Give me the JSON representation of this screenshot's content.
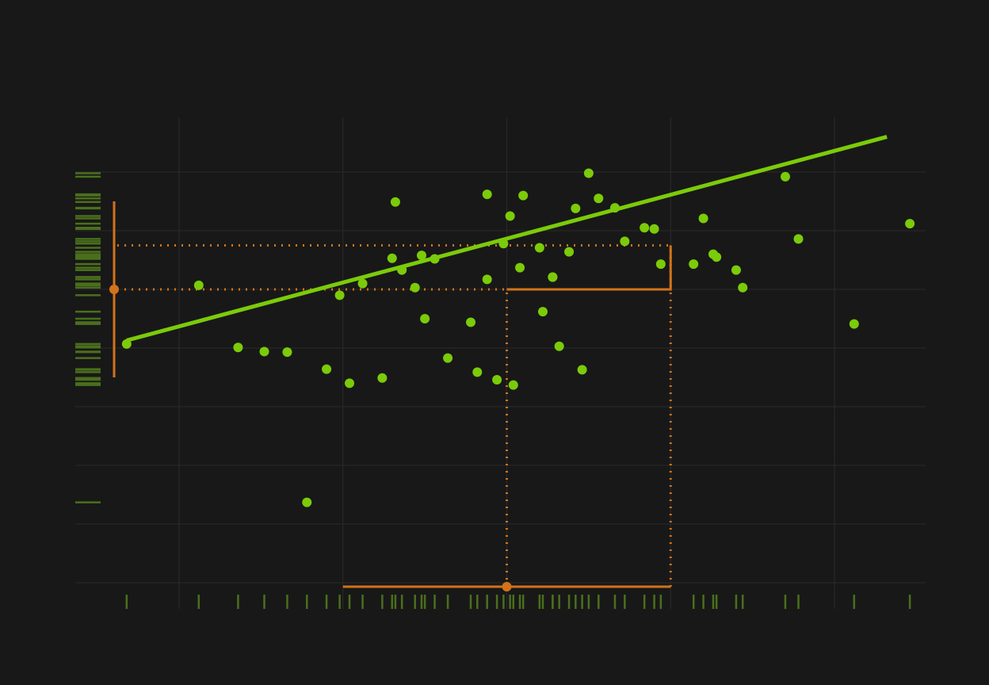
{
  "chart_data": {
    "type": "scatter",
    "title": "",
    "xlabel": "",
    "ylabel": "",
    "xlim": [
      -13,
      13
    ],
    "ylim": [
      -55,
      25
    ],
    "grid": true,
    "x_gridlines": [
      -10,
      -5,
      0,
      5,
      10
    ],
    "y_gridlines": [
      -50,
      -40,
      -30,
      -20,
      -10,
      0,
      10,
      20
    ],
    "points": [
      {
        "x": -11.6,
        "y": -9.3
      },
      {
        "x": -9.4,
        "y": 0.7
      },
      {
        "x": -8.2,
        "y": -9.9
      },
      {
        "x": -7.4,
        "y": -10.6
      },
      {
        "x": -6.7,
        "y": -10.7
      },
      {
        "x": -6.1,
        "y": -36.3
      },
      {
        "x": -5.5,
        "y": -13.6
      },
      {
        "x": -5.1,
        "y": -1.0
      },
      {
        "x": -4.8,
        "y": -16.0
      },
      {
        "x": -4.4,
        "y": 1.0
      },
      {
        "x": -3.8,
        "y": -15.1
      },
      {
        "x": -3.5,
        "y": 5.3
      },
      {
        "x": -3.4,
        "y": 14.9
      },
      {
        "x": -3.2,
        "y": 3.3
      },
      {
        "x": -2.8,
        "y": 0.3
      },
      {
        "x": -2.6,
        "y": 5.8
      },
      {
        "x": -2.5,
        "y": -5.0
      },
      {
        "x": -2.2,
        "y": 5.2
      },
      {
        "x": -1.1,
        "y": -5.6
      },
      {
        "x": -0.9,
        "y": -14.1
      },
      {
        "x": -0.6,
        "y": 1.7
      },
      {
        "x": -0.6,
        "y": 16.2
      },
      {
        "x": -0.3,
        "y": -15.4
      },
      {
        "x": -1.8,
        "y": -11.7
      },
      {
        "x": -0.1,
        "y": 7.8
      },
      {
        "x": 0.1,
        "y": 12.5
      },
      {
        "x": 0.4,
        "y": 3.7
      },
      {
        "x": 1.0,
        "y": 7.1
      },
      {
        "x": 1.1,
        "y": -3.8
      },
      {
        "x": 1.6,
        "y": -9.7
      },
      {
        "x": 1.9,
        "y": 6.4
      },
      {
        "x": 2.1,
        "y": 13.8
      },
      {
        "x": 1.4,
        "y": 2.1
      },
      {
        "x": 2.3,
        "y": -13.7
      },
      {
        "x": 2.5,
        "y": 19.8
      },
      {
        "x": 2.8,
        "y": 15.5
      },
      {
        "x": 3.3,
        "y": 13.9
      },
      {
        "x": 3.6,
        "y": 8.2
      },
      {
        "x": 4.2,
        "y": 10.5
      },
      {
        "x": 4.5,
        "y": 10.3
      },
      {
        "x": 4.7,
        "y": 4.3
      },
      {
        "x": 5.7,
        "y": 4.3
      },
      {
        "x": 6.0,
        "y": 12.1
      },
      {
        "x": 6.3,
        "y": 6.0
      },
      {
        "x": 6.4,
        "y": 5.5
      },
      {
        "x": 7.0,
        "y": 3.3
      },
      {
        "x": 7.2,
        "y": 0.3
      },
      {
        "x": 8.5,
        "y": 19.2
      },
      {
        "x": 8.9,
        "y": 8.6
      },
      {
        "x": 10.6,
        "y": -5.9
      },
      {
        "x": 12.3,
        "y": 11.2
      },
      {
        "x": 0.2,
        "y": -16.3
      },
      {
        "x": 0.5,
        "y": 16.0
      },
      {
        "x": 1.4,
        "y": 2.1
      }
    ],
    "regression_line": {
      "x": [
        -11.6,
        11.6
      ],
      "y": [
        -8.7,
        26.0
      ]
    },
    "highlight": {
      "x_range": [
        -5,
        5
      ],
      "x_point": 0,
      "y_at_x_point": 0,
      "y_at_x_end": 7.5,
      "y_range": [
        -15,
        15
      ]
    },
    "colors": {
      "points": "#7bcb0a",
      "regression": "#7bcb0a",
      "rug": "#4a6f1c",
      "highlight": "#d2731a",
      "grid": "#2a2a2a",
      "background": "#181818"
    }
  }
}
